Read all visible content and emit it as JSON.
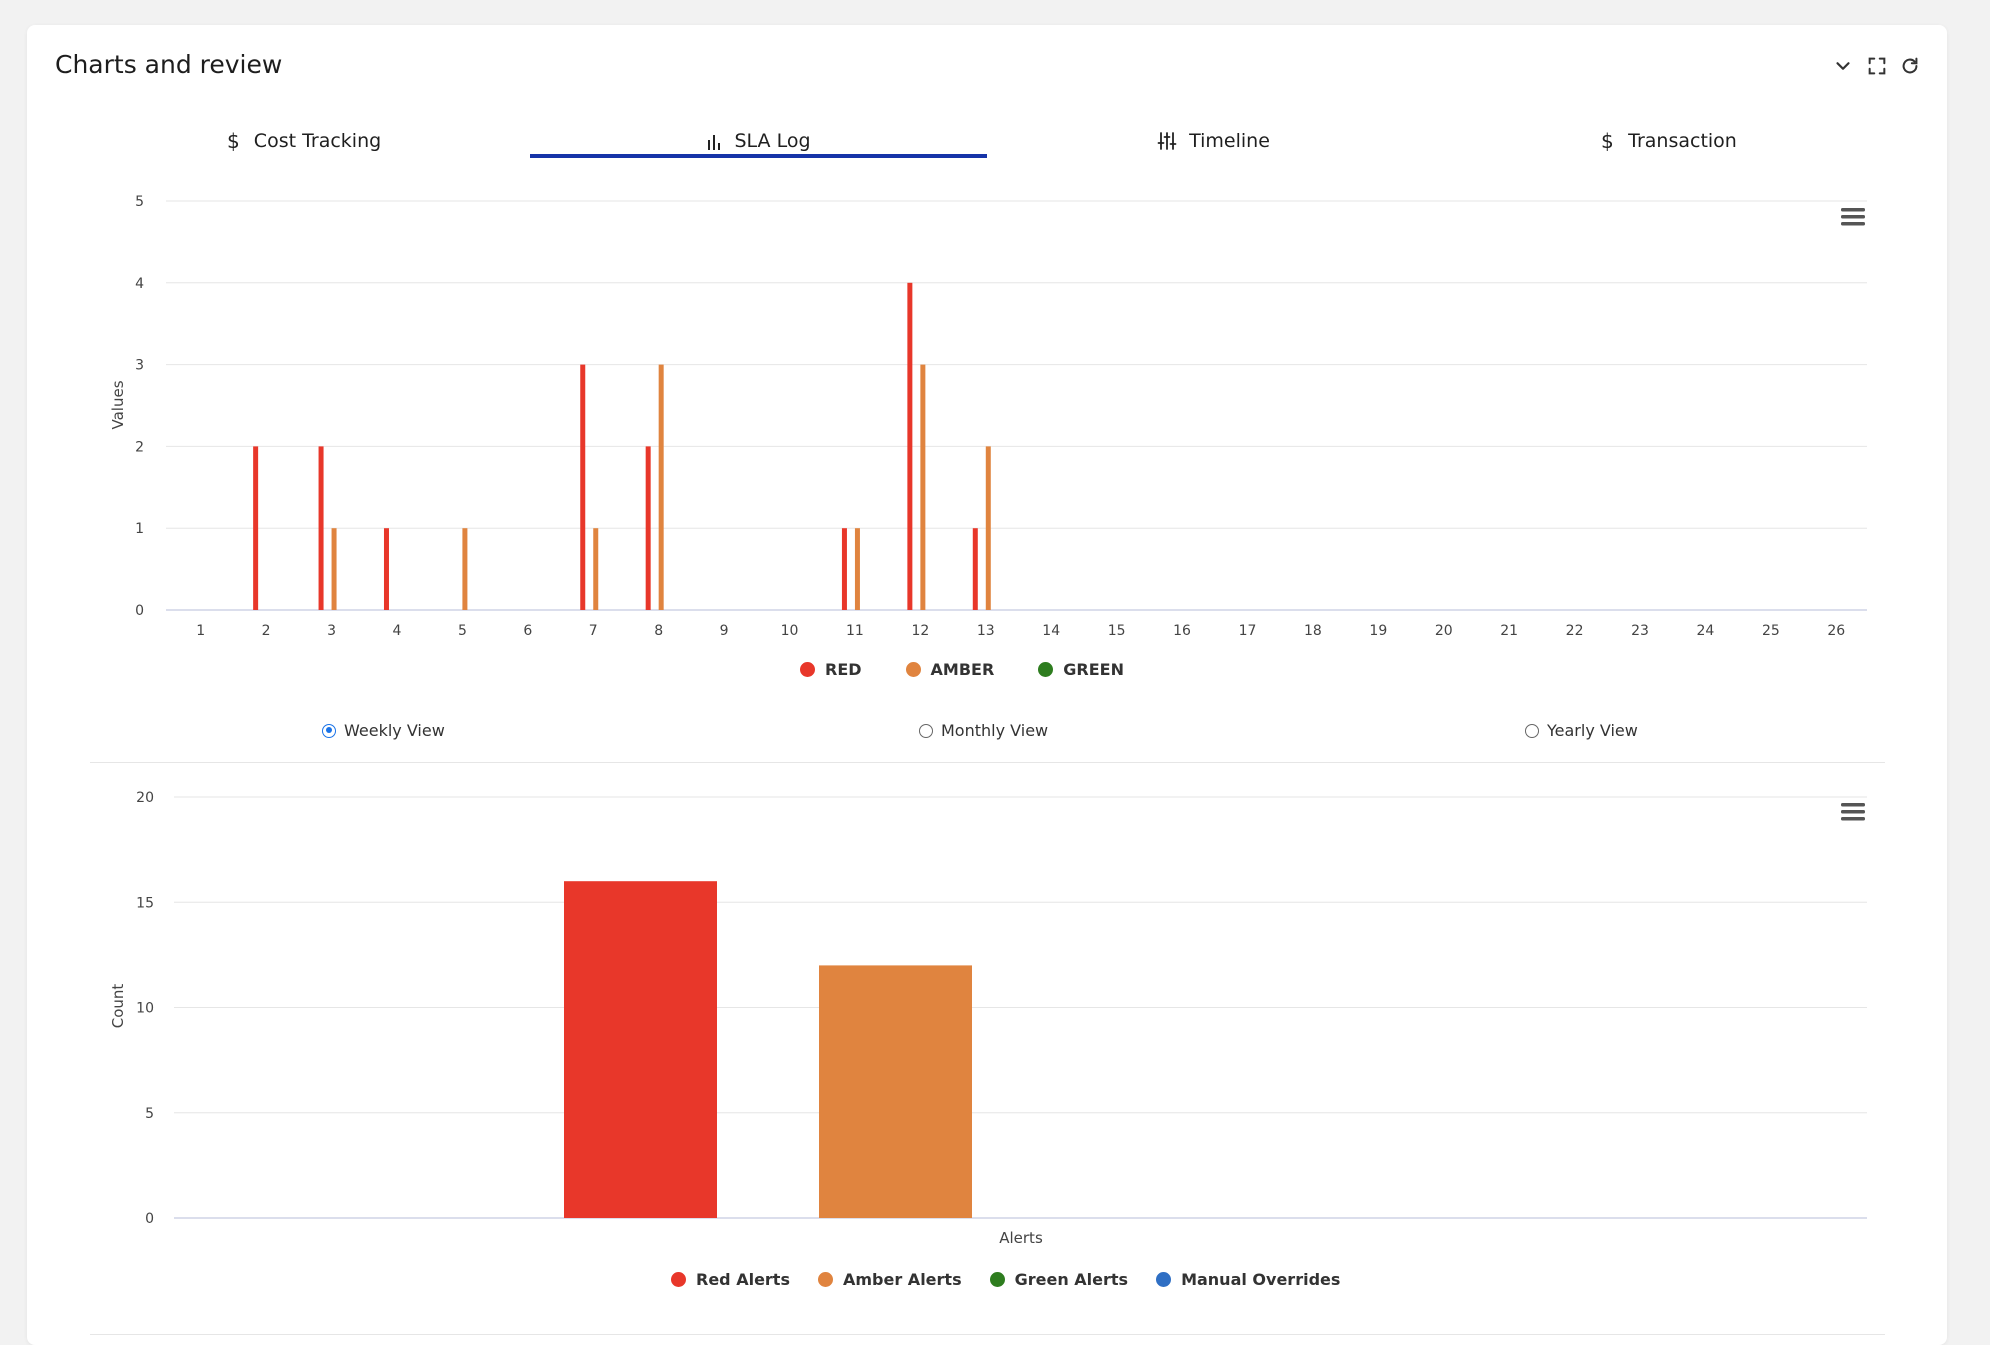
{
  "card": {
    "title": "Charts and review"
  },
  "actions": {
    "collapse": "chevron-down-icon",
    "fullscreen": "expand-icon",
    "refresh": "refresh-icon"
  },
  "tabs": [
    {
      "label": "Cost Tracking",
      "icon": "dollar-icon",
      "active": false
    },
    {
      "label": "SLA Log",
      "icon": "bar-chart-icon",
      "active": true
    },
    {
      "label": "Timeline",
      "icon": "sliders-icon",
      "active": false
    },
    {
      "label": "Transaction",
      "icon": "dollar-icon",
      "active": false
    }
  ],
  "colors": {
    "red": "#e8372a",
    "amber": "#e0843f",
    "green": "#2e7d1f",
    "blue": "#2f6fc4",
    "tab_active": "#1634a8",
    "radio": "#1a73e8"
  },
  "view_options": [
    {
      "label": "Weekly View",
      "checked": true
    },
    {
      "label": "Monthly View",
      "checked": false
    },
    {
      "label": "Yearly View",
      "checked": false
    }
  ],
  "chart_data": [
    {
      "type": "bar",
      "ylabel": "Values",
      "ylim": [
        0,
        5
      ],
      "yticks": [
        "0",
        "1",
        "2",
        "3",
        "4",
        "5"
      ],
      "categories": [
        "1",
        "2",
        "3",
        "4",
        "5",
        "6",
        "7",
        "8",
        "9",
        "10",
        "11",
        "12",
        "13",
        "14",
        "15",
        "16",
        "17",
        "18",
        "19",
        "20",
        "21",
        "22",
        "23",
        "24",
        "25",
        "26"
      ],
      "series": [
        {
          "name": "RED",
          "color": "#e8372a",
          "values": [
            0,
            2,
            2,
            1,
            0,
            0,
            3,
            2,
            0,
            0,
            1,
            4,
            1,
            0,
            0,
            0,
            0,
            0,
            0,
            0,
            0,
            0,
            0,
            0,
            0,
            0
          ]
        },
        {
          "name": "AMBER",
          "color": "#e0843f",
          "values": [
            0,
            0,
            1,
            0,
            1,
            0,
            1,
            3,
            0,
            0,
            1,
            3,
            2,
            0,
            0,
            0,
            0,
            0,
            0,
            0,
            0,
            0,
            0,
            0,
            0,
            0
          ]
        },
        {
          "name": "GREEN",
          "color": "#2e7d1f",
          "values": [
            0,
            0,
            0,
            0,
            0,
            0,
            0,
            0,
            0,
            0,
            0,
            0,
            0,
            0,
            0,
            0,
            0,
            0,
            0,
            0,
            0,
            0,
            0,
            0,
            0,
            0
          ]
        }
      ],
      "legend_position": "bottom-center",
      "grid": true
    },
    {
      "type": "bar",
      "ylabel": "Count",
      "xlabel": "Alerts",
      "ylim": [
        0,
        20
      ],
      "yticks": [
        "0",
        "5",
        "10",
        "15",
        "20"
      ],
      "categories": [
        "Alerts"
      ],
      "series": [
        {
          "name": "Red Alerts",
          "color": "#e8372a",
          "values": [
            16
          ]
        },
        {
          "name": "Amber Alerts",
          "color": "#e0843f",
          "values": [
            12
          ]
        },
        {
          "name": "Green Alerts",
          "color": "#2e7d1f",
          "values": [
            0
          ]
        },
        {
          "name": "Manual Overrides",
          "color": "#2f6fc4",
          "values": [
            0
          ]
        }
      ],
      "legend_position": "bottom-center",
      "grid": true
    }
  ]
}
